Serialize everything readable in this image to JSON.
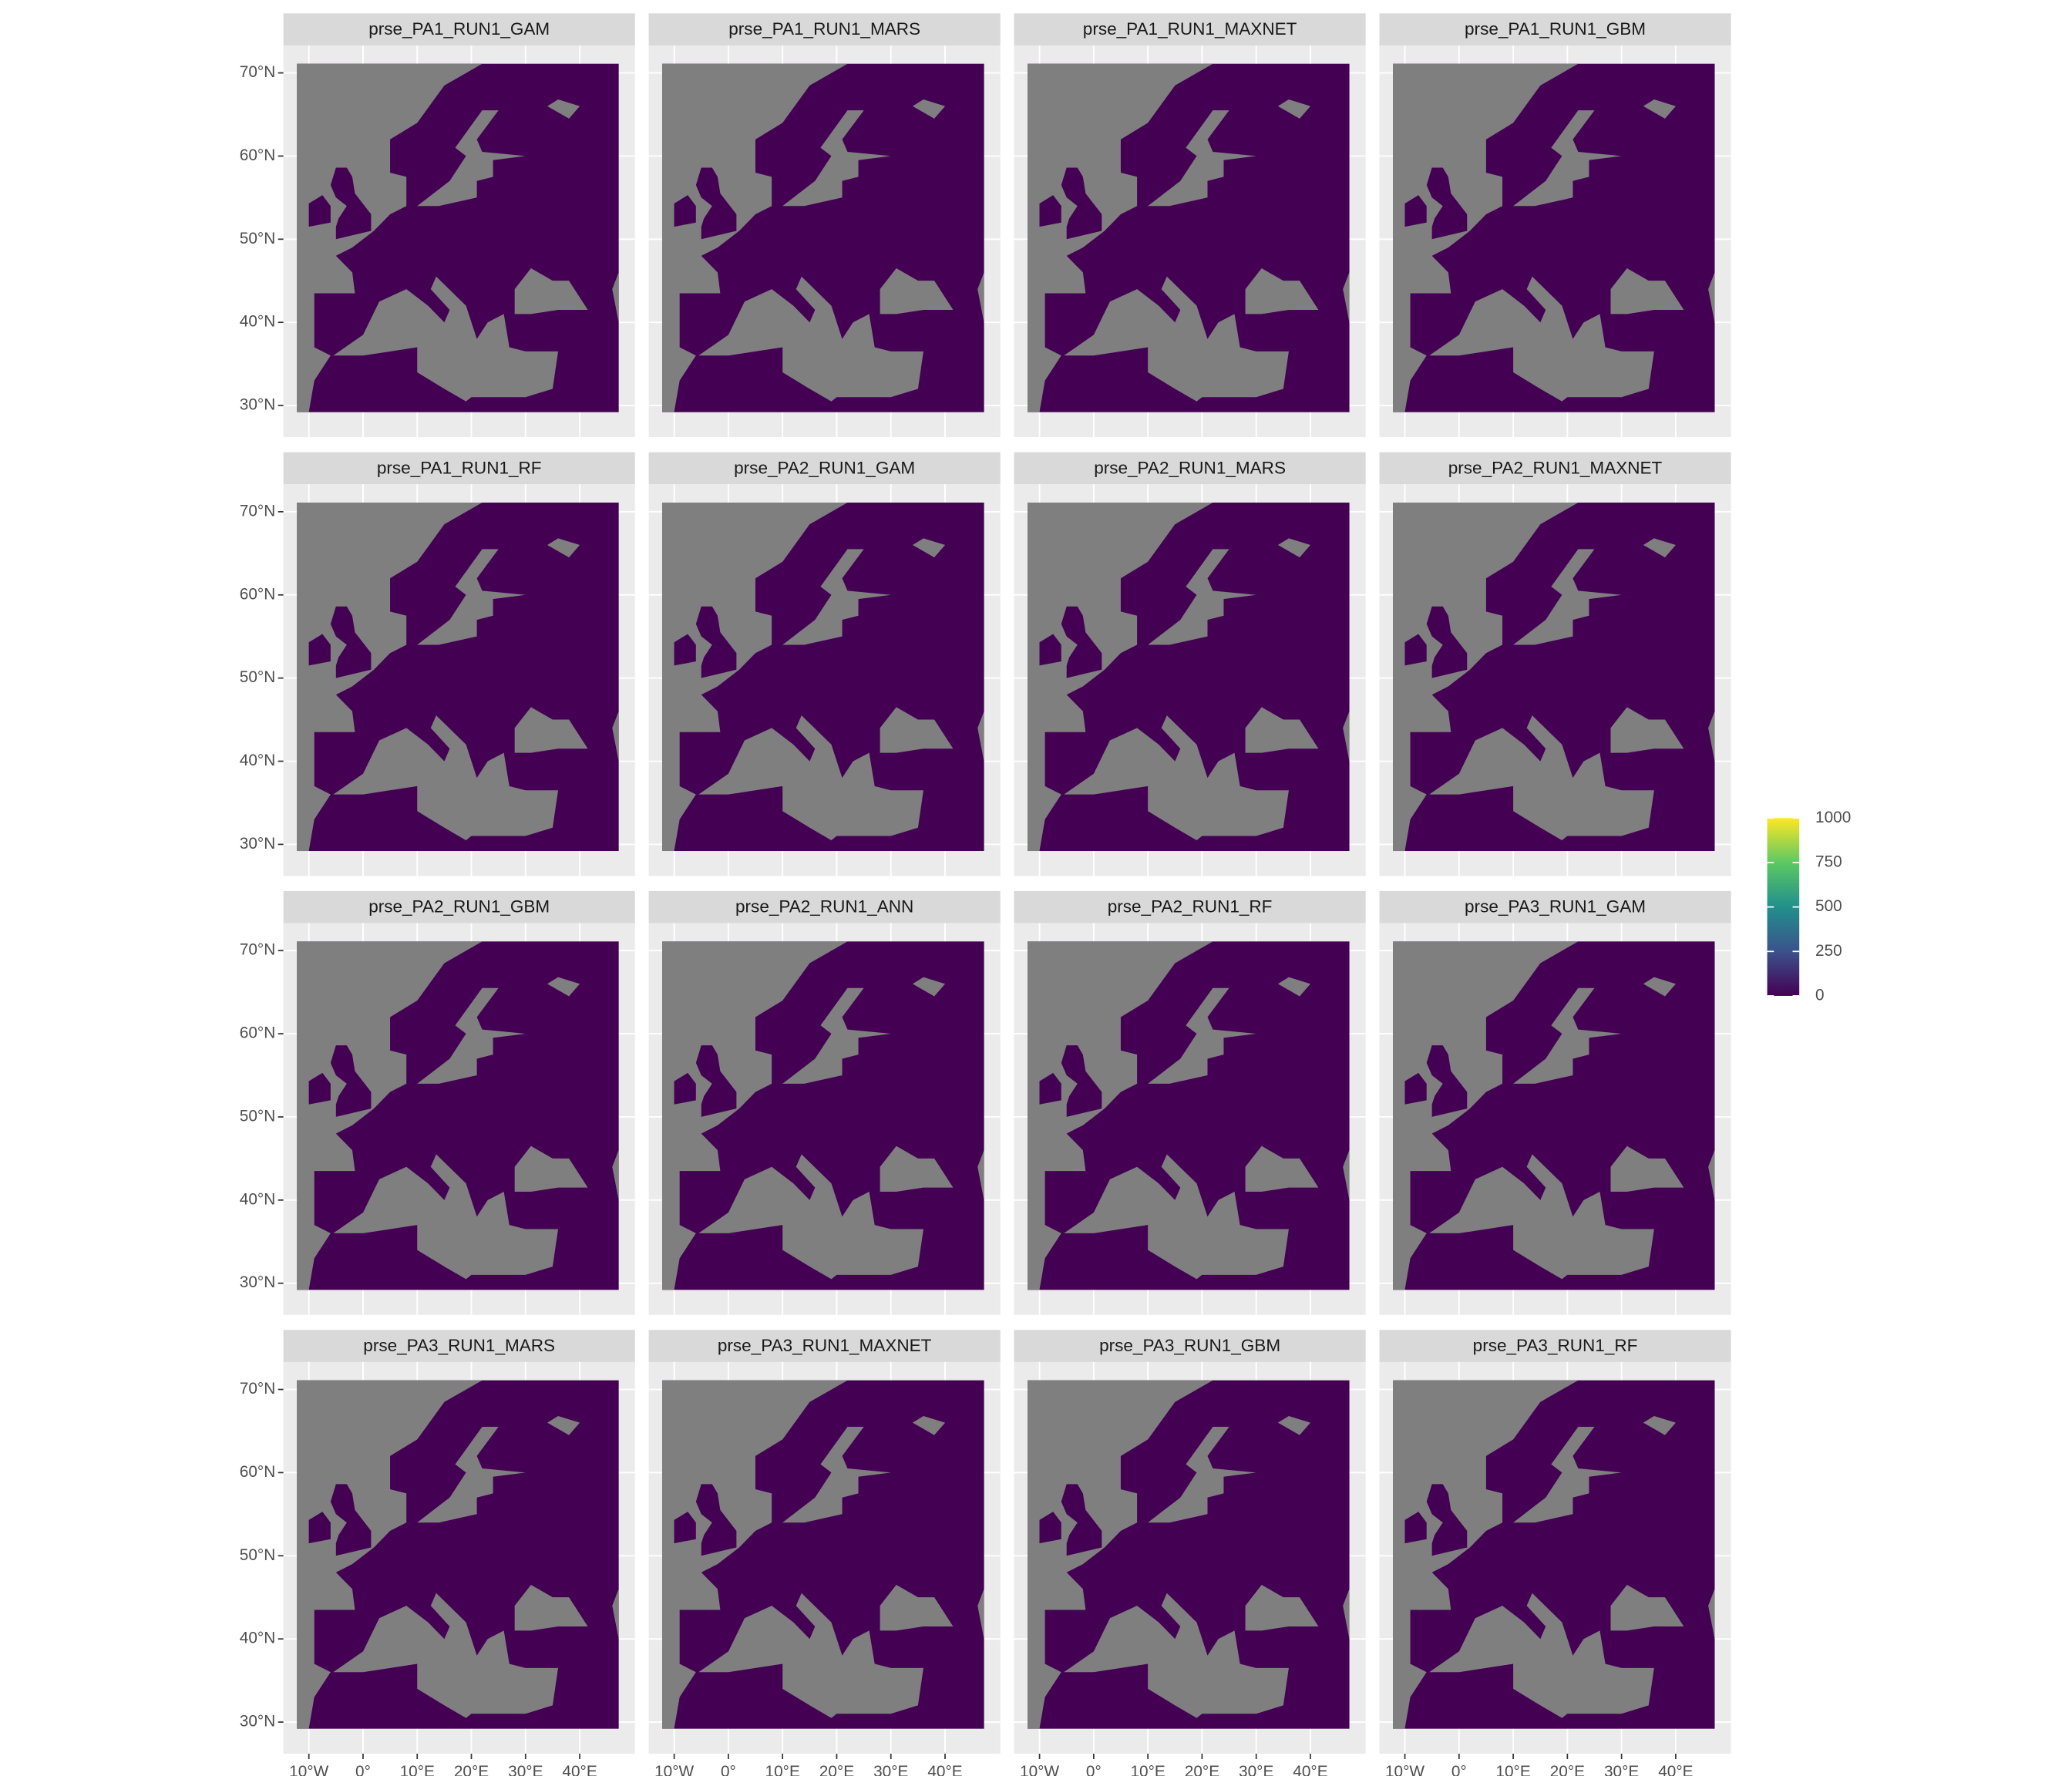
{
  "panels": [
    "prse_PA1_RUN1_GAM",
    "prse_PA1_RUN1_MARS",
    "prse_PA1_RUN1_MAXNET",
    "prse_PA1_RUN1_GBM",
    "prse_PA1_RUN1_RF",
    "prse_PA2_RUN1_GAM",
    "prse_PA2_RUN1_MARS",
    "prse_PA2_RUN1_MAXNET",
    "prse_PA2_RUN1_GBM",
    "prse_PA2_RUN1_ANN",
    "prse_PA2_RUN1_RF",
    "prse_PA3_RUN1_GAM",
    "prse_PA3_RUN1_MARS",
    "prse_PA3_RUN1_MAXNET",
    "prse_PA3_RUN1_GBM",
    "prse_PA3_RUN1_RF"
  ],
  "xlim": [
    -14.7,
    50.2
  ],
  "ylim": [
    26.2,
    73.3
  ],
  "xticks": [
    {
      "value": -10,
      "label": "10°W"
    },
    {
      "value": 0,
      "label": "0°"
    },
    {
      "value": 10,
      "label": "10°E"
    },
    {
      "value": 20,
      "label": "20°E"
    },
    {
      "value": 30,
      "label": "30°E"
    },
    {
      "value": 40,
      "label": "40°E"
    }
  ],
  "yticks": [
    {
      "value": 30,
      "label": "30°N"
    },
    {
      "value": 40,
      "label": "40°N"
    },
    {
      "value": 50,
      "label": "50°N"
    },
    {
      "value": 60,
      "label": "60°N"
    },
    {
      "value": 70,
      "label": "70°N"
    }
  ],
  "legend": {
    "lim": [
      0,
      1000
    ],
    "ticks": [
      0,
      250,
      500,
      750,
      1000
    ],
    "colors": [
      "#440154",
      "#3b528b",
      "#21908c",
      "#5dc863",
      "#fde725"
    ]
  }
}
